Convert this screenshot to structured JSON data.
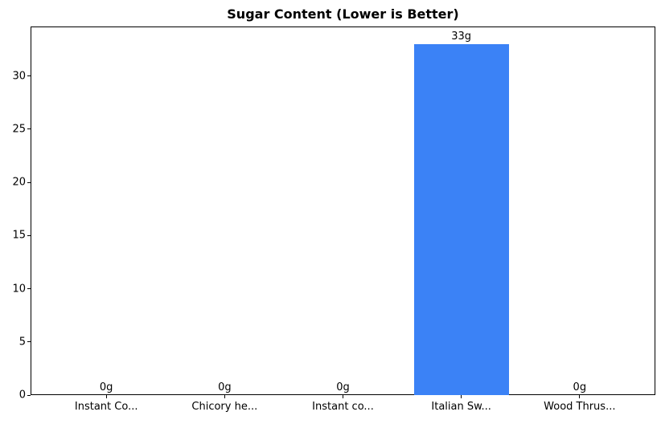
{
  "chart_data": {
    "type": "bar",
    "title": "Sugar Content (Lower is Better)",
    "categories": [
      "Instant Co...",
      "Chicory he...",
      "Instant co...",
      "Italian Sw...",
      "Wood Thrus..."
    ],
    "values": [
      0,
      0,
      0,
      33,
      0
    ],
    "value_labels": [
      "0g",
      "0g",
      "0g",
      "33g",
      "0g"
    ],
    "yticks": [
      0,
      5,
      10,
      15,
      20,
      25,
      30
    ],
    "ylim": [
      0,
      34.65
    ],
    "xlabel": "",
    "ylabel": "",
    "grid": false,
    "legend": null,
    "colors": {
      "bar": "#3b82f6",
      "axis": "#000000",
      "text": "#000000",
      "background": "#ffffff"
    }
  }
}
